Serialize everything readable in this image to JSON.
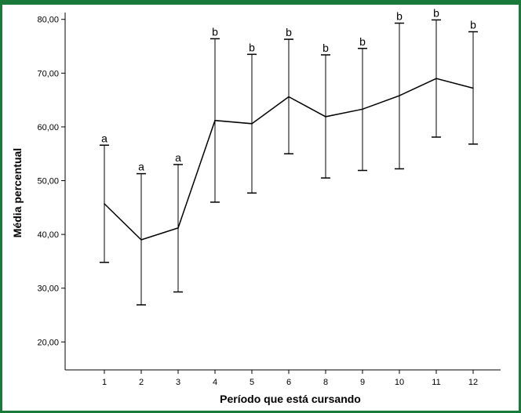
{
  "chart_data": {
    "type": "line",
    "xlabel": "Período que está cursando",
    "ylabel": "Média percentual",
    "ylim": [
      20,
      80
    ],
    "yticks": [
      20,
      30,
      40,
      50,
      60,
      70,
      80
    ],
    "ytick_labels": [
      "20,00",
      "30,00",
      "40,00",
      "50,00",
      "60,00",
      "70,00",
      "80,00"
    ],
    "grid": false,
    "categories": [
      "1",
      "2",
      "3",
      "4",
      "5",
      "6",
      "8",
      "9",
      "10",
      "11",
      "12"
    ],
    "means": [
      45.7,
      39.0,
      41.2,
      61.2,
      60.6,
      65.6,
      61.9,
      63.3,
      65.8,
      69.0,
      67.2
    ],
    "lower": [
      34.8,
      26.9,
      29.3,
      46.0,
      47.7,
      55.0,
      50.5,
      51.9,
      52.2,
      58.1,
      56.8
    ],
    "upper": [
      56.6,
      51.3,
      53.0,
      76.4,
      73.5,
      76.3,
      73.4,
      74.6,
      79.3,
      79.9,
      77.7
    ],
    "group_letters": [
      "a",
      "a",
      "a",
      "b",
      "b",
      "b",
      "b",
      "b",
      "b",
      "b",
      "b"
    ],
    "colors": {
      "frame": "#1a7a3c",
      "ink": "#000000"
    }
  }
}
